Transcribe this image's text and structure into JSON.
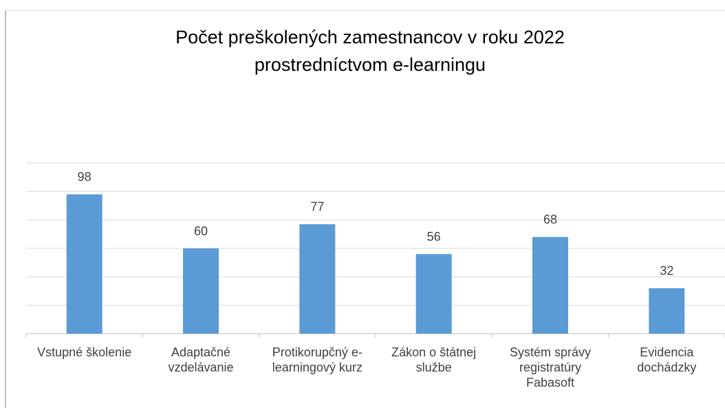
{
  "chart_data": {
    "type": "bar",
    "title": "Počet preškolených zamestnancov v roku 2022 prostredníctvom e-learningu",
    "categories": [
      "Vstupné školenie",
      "Adaptačné vzdelávanie",
      "Protikorupčný e-learningový kurz",
      "Zákon o štátnej službe",
      "Systém správy registratúry Fabasoft",
      "Evidencia dochádzky"
    ],
    "values": [
      98,
      60,
      77,
      56,
      68,
      32
    ],
    "color": "#5b9bd5",
    "ylim": [
      0,
      120
    ],
    "yticks": [
      0,
      20,
      40,
      60,
      80,
      100,
      120
    ],
    "grid": true
  }
}
